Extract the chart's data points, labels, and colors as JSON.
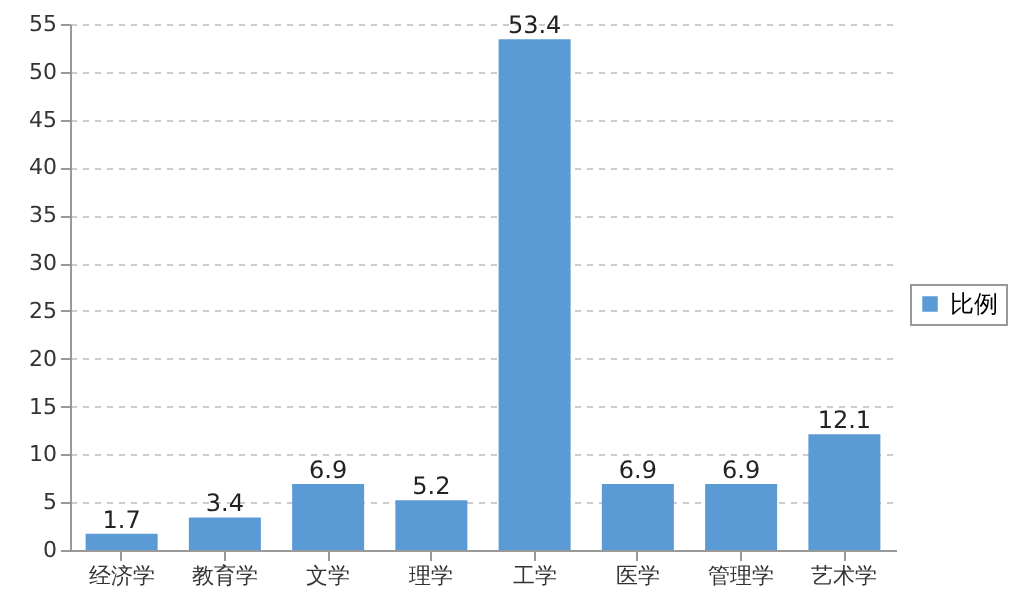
{
  "chart_data": {
    "type": "bar",
    "categories": [
      "经济学",
      "教育学",
      "文学",
      "理学",
      "工学",
      "医学",
      "管理学",
      "艺术学"
    ],
    "series": [
      {
        "name": "比例",
        "color": "#5b9bd5",
        "values": [
          1.7,
          3.4,
          6.9,
          5.2,
          53.4,
          6.9,
          6.9,
          12.1
        ]
      }
    ],
    "ylim": [
      0,
      55
    ],
    "yticks": [
      0,
      5,
      10,
      15,
      20,
      25,
      30,
      35,
      40,
      45,
      50,
      55
    ],
    "grid": "y",
    "legend": "right",
    "data_labels": true
  }
}
